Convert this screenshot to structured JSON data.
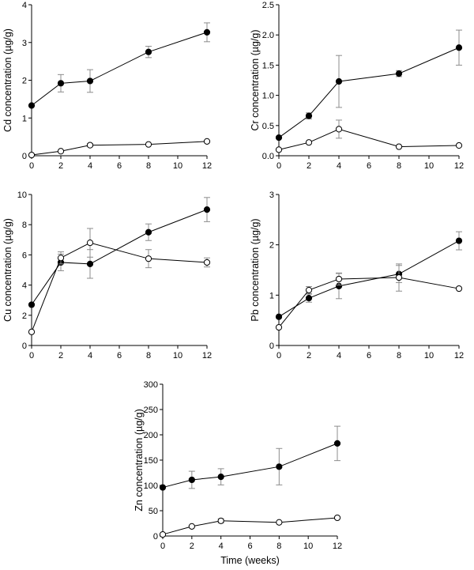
{
  "figure": {
    "shared_xlabel": "Time (weeks)"
  },
  "chart_data": [
    {
      "id": "cd",
      "type": "line",
      "title": "",
      "ylabel": "Cd concentration (µg/g)",
      "xlabel": "",
      "x": [
        0,
        2,
        4,
        8,
        12
      ],
      "xlim": [
        0,
        12
      ],
      "ylim": [
        0,
        4
      ],
      "xticks": [
        "0",
        "2",
        "4",
        "6",
        "8",
        "10",
        "12"
      ],
      "yticks": [
        "0",
        "1",
        "2",
        "3",
        "4"
      ],
      "series": [
        {
          "name": "filled",
          "marker": "filled",
          "values": [
            1.33,
            1.92,
            1.98,
            2.75,
            3.27
          ],
          "errors": [
            0,
            0.23,
            0.3,
            0.15,
            0.25
          ]
        },
        {
          "name": "open",
          "marker": "open",
          "values": [
            0.02,
            0.12,
            0.28,
            0.3,
            0.38
          ],
          "errors": [
            0,
            0,
            0.04,
            0,
            0
          ]
        }
      ]
    },
    {
      "id": "cr",
      "type": "line",
      "title": "",
      "ylabel": "Cr concentration (µg/g)",
      "xlabel": "",
      "x": [
        0,
        2,
        4,
        8,
        12
      ],
      "xlim": [
        0,
        12
      ],
      "ylim": [
        0,
        2.5
      ],
      "xticks": [
        "0",
        "2",
        "4",
        "6",
        "8",
        "10",
        "12"
      ],
      "yticks": [
        "0.0",
        "0.5",
        "1.0",
        "1.5",
        "2.0",
        "2.5"
      ],
      "series": [
        {
          "name": "filled",
          "marker": "filled",
          "values": [
            0.3,
            0.66,
            1.23,
            1.36,
            1.79
          ],
          "errors": [
            0,
            0.05,
            0.43,
            0.05,
            0.29
          ]
        },
        {
          "name": "open",
          "marker": "open",
          "values": [
            0.1,
            0.22,
            0.44,
            0.15,
            0.17
          ],
          "errors": [
            0,
            0,
            0.15,
            0,
            0
          ]
        }
      ]
    },
    {
      "id": "cu",
      "type": "line",
      "title": "",
      "ylabel": "Cu concentration (µg/g)",
      "xlabel": "",
      "x": [
        0,
        2,
        4,
        8,
        12
      ],
      "xlim": [
        0,
        12
      ],
      "ylim": [
        0,
        10
      ],
      "xticks": [
        "0",
        "2",
        "4",
        "6",
        "8",
        "10",
        "12"
      ],
      "yticks": [
        "0",
        "2",
        "4",
        "6",
        "8",
        "10"
      ],
      "series": [
        {
          "name": "filled",
          "marker": "filled",
          "values": [
            2.7,
            5.5,
            5.4,
            7.5,
            9.0
          ],
          "errors": [
            0,
            0.55,
            0.95,
            0.55,
            0.8
          ]
        },
        {
          "name": "open",
          "marker": "open",
          "values": [
            0.9,
            5.8,
            6.8,
            5.75,
            5.5
          ],
          "errors": [
            0,
            0.4,
            0.95,
            0.6,
            0.3
          ]
        }
      ]
    },
    {
      "id": "pb",
      "type": "line",
      "title": "",
      "ylabel": "Pb concentration (µg/g)",
      "xlabel": "",
      "x": [
        0,
        2,
        4,
        8,
        12
      ],
      "xlim": [
        0,
        12
      ],
      "ylim": [
        0,
        3
      ],
      "xticks": [
        "0",
        "2",
        "4",
        "6",
        "8",
        "10",
        "12"
      ],
      "yticks": [
        "0",
        "1",
        "2",
        "3"
      ],
      "series": [
        {
          "name": "filled",
          "marker": "filled",
          "values": [
            0.57,
            0.94,
            1.18,
            1.42,
            2.08
          ],
          "errors": [
            0,
            0.08,
            0.25,
            0.17,
            0.18
          ]
        },
        {
          "name": "open",
          "marker": "open",
          "values": [
            0.36,
            1.1,
            1.32,
            1.35,
            1.13
          ],
          "errors": [
            0,
            0.07,
            0.12,
            0.27,
            0
          ]
        }
      ]
    },
    {
      "id": "zn",
      "type": "line",
      "title": "",
      "ylabel": "Zn concentration (µg/g)",
      "xlabel": "Time (weeks)",
      "x": [
        0,
        2,
        4,
        8,
        12
      ],
      "xlim": [
        0,
        12
      ],
      "ylim": [
        0,
        300
      ],
      "xticks": [
        "0",
        "2",
        "4",
        "6",
        "8",
        "10",
        "12"
      ],
      "yticks": [
        "0",
        "50",
        "100",
        "150",
        "200",
        "250",
        "300"
      ],
      "series": [
        {
          "name": "filled",
          "marker": "filled",
          "values": [
            96,
            111,
            117,
            137,
            183
          ],
          "errors": [
            0,
            17,
            16,
            36,
            34
          ]
        },
        {
          "name": "open",
          "marker": "open",
          "values": [
            3,
            19,
            30,
            27,
            36
          ],
          "errors": [
            0,
            0,
            4,
            0,
            0
          ]
        }
      ]
    }
  ]
}
